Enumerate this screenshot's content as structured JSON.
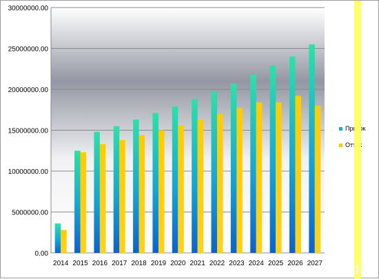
{
  "chart_data": {
    "type": "bar",
    "categories": [
      "2014",
      "2015",
      "2016",
      "2017",
      "2018",
      "2019",
      "2020",
      "2021",
      "2022",
      "2023",
      "2024",
      "2025",
      "2026",
      "2027"
    ],
    "series": [
      {
        "name": "Приток",
        "color": "#1ec9c9",
        "values": [
          3600000,
          12500000,
          14800000,
          15500000,
          16300000,
          17100000,
          17900000,
          18800000,
          19700000,
          20700000,
          21800000,
          22900000,
          24000000,
          25500000
        ]
      },
      {
        "name": "Отток",
        "color": "#ffd200",
        "values": [
          2800000,
          12300000,
          13300000,
          13800000,
          14400000,
          15000000,
          15600000,
          16300000,
          17000000,
          17700000,
          18400000,
          18400000,
          19200000,
          18000000
        ]
      }
    ],
    "ylim": [
      0,
      30000000
    ],
    "yticks": [
      "0.00",
      "5000000.00",
      "10000000.00",
      "15000000.00",
      "20000000.00",
      "25000000.00",
      "30000000.00"
    ],
    "legend": "right",
    "grid": true
  }
}
